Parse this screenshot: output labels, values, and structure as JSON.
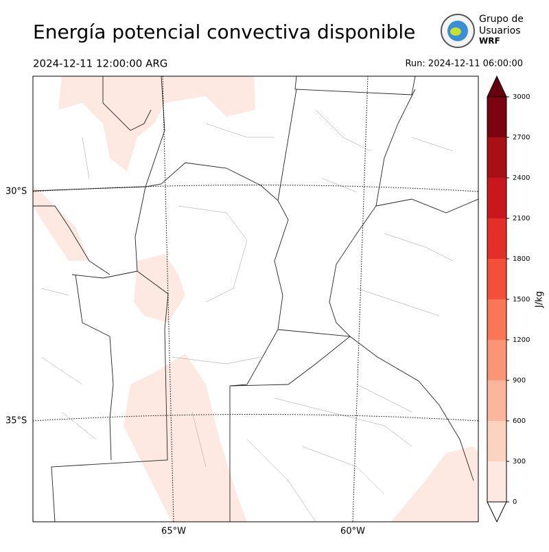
{
  "title": "Energía potencial convectiva disponible",
  "valid_time": "2024-12-11 12:00:00 ARG",
  "run": "Run: 2024-12-11 06:00:00",
  "logo": {
    "line1": "Grupo de",
    "line2": "Usuarios",
    "line3": "WRF"
  },
  "map": {
    "lat_labels": [
      "30°S",
      "35°S"
    ],
    "lon_labels": [
      "65°W",
      "60°W"
    ]
  },
  "colorbar": {
    "label": "J/kg",
    "range": [
      0,
      3000
    ],
    "ticks": [
      0,
      300,
      600,
      900,
      1200,
      1500,
      1800,
      2100,
      2400,
      2700,
      3000
    ],
    "colors": [
      "#fde9e1",
      "#fcd3c1",
      "#fcb69b",
      "#fc9576",
      "#fb7656",
      "#f44f39",
      "#e32f27",
      "#c9181d",
      "#a91016",
      "#7a0510"
    ],
    "over_color": "#67000d",
    "under_color": "#ffffff"
  }
}
